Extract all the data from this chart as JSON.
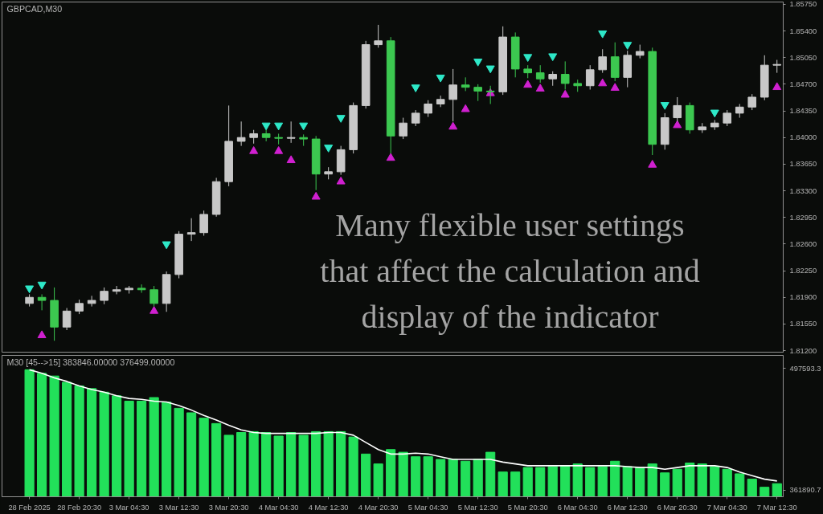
{
  "chart_data": [
    {
      "type": "candlestick",
      "title": "GBPCAD,M30",
      "annotations": [
        "Many flexible user settings",
        "that affect the calculation and",
        "display of the indicator"
      ],
      "categories": [
        null,
        null,
        null,
        null,
        null,
        null,
        null,
        null,
        null,
        null,
        null,
        null,
        null,
        null,
        null,
        null,
        null,
        null,
        null,
        null,
        null,
        null,
        null,
        null,
        null,
        null,
        null,
        null,
        null,
        null,
        null,
        null,
        null,
        null,
        null,
        null,
        null,
        null,
        null,
        null,
        null,
        null,
        null,
        null,
        null,
        null,
        null,
        null,
        null,
        null,
        null,
        null,
        null,
        null,
        null,
        null,
        null,
        null,
        null,
        null,
        null
      ],
      "ohlc": [
        [
          1.8182,
          1.8194,
          1.8178,
          1.819
        ],
        [
          1.819,
          1.8194,
          1.8173,
          1.8186
        ],
        [
          1.8186,
          1.8203,
          1.8133,
          1.8151
        ],
        [
          1.8151,
          1.8176,
          1.8147,
          1.8172
        ],
        [
          1.8172,
          1.8187,
          1.8168,
          1.8182
        ],
        [
          1.8182,
          1.8192,
          1.8178,
          1.8186
        ],
        [
          1.8186,
          1.8203,
          1.8181,
          1.8198
        ],
        [
          1.8198,
          1.8205,
          1.8194,
          1.82
        ],
        [
          1.82,
          1.8205,
          1.8195,
          1.8202
        ],
        [
          1.8202,
          1.8207,
          1.8196,
          1.82
        ],
        [
          1.82,
          1.8205,
          1.8178,
          1.8182
        ],
        [
          1.8182,
          1.8224,
          1.8171,
          1.822
        ],
        [
          1.822,
          1.8277,
          1.8215,
          1.8273
        ],
        [
          1.8273,
          1.8294,
          1.8264,
          1.8275
        ],
        [
          1.8275,
          1.8304,
          1.8271,
          1.8299
        ],
        [
          1.8299,
          1.8347,
          1.8296,
          1.8342
        ],
        [
          1.8342,
          1.8442,
          1.8336,
          1.8395
        ],
        [
          1.8395,
          1.8421,
          1.8389,
          1.84
        ],
        [
          1.84,
          1.841,
          1.8392,
          1.8405
        ],
        [
          1.8405,
          1.841,
          1.8395,
          1.84
        ],
        [
          1.84,
          1.8405,
          1.8391,
          1.8399
        ],
        [
          1.8399,
          1.8421,
          1.8393,
          1.84
        ],
        [
          1.84,
          1.8404,
          1.8389,
          1.8398
        ],
        [
          1.8398,
          1.8402,
          1.8331,
          1.8352
        ],
        [
          1.8352,
          1.8361,
          1.8345,
          1.8355
        ],
        [
          1.8355,
          1.8389,
          1.8351,
          1.8384
        ],
        [
          1.8384,
          1.8446,
          1.8379,
          1.8442
        ],
        [
          1.8442,
          1.8527,
          1.8438,
          1.8522
        ],
        [
          1.8522,
          1.8548,
          1.8518,
          1.8527
        ],
        [
          1.8527,
          1.8532,
          1.8379,
          1.8402
        ],
        [
          1.8402,
          1.8426,
          1.8398,
          1.8419
        ],
        [
          1.8419,
          1.8436,
          1.8415,
          1.8432
        ],
        [
          1.8432,
          1.8449,
          1.8427,
          1.8444
        ],
        [
          1.8444,
          1.8455,
          1.844,
          1.845
        ],
        [
          1.845,
          1.849,
          1.8421,
          1.8469
        ],
        [
          1.8469,
          1.8479,
          1.8461,
          1.8466
        ],
        [
          1.8466,
          1.847,
          1.8448,
          1.8461
        ],
        [
          1.8461,
          1.8468,
          1.8444,
          1.846
        ],
        [
          1.846,
          1.8546,
          1.8456,
          1.8532
        ],
        [
          1.8532,
          1.8538,
          1.8479,
          1.849
        ],
        [
          1.849,
          1.8495,
          1.8478,
          1.8485
        ],
        [
          1.8485,
          1.8495,
          1.8472,
          1.8477
        ],
        [
          1.8477,
          1.8487,
          1.8468,
          1.8483
        ],
        [
          1.8483,
          1.85,
          1.8463,
          1.8471
        ],
        [
          1.8471,
          1.8476,
          1.846,
          1.8468
        ],
        [
          1.8468,
          1.8495,
          1.8463,
          1.8489
        ],
        [
          1.8489,
          1.8516,
          1.8485,
          1.8506
        ],
        [
          1.8506,
          1.8525,
          1.8474,
          1.8479
        ],
        [
          1.8479,
          1.8514,
          1.8466,
          1.8508
        ],
        [
          1.8508,
          1.8522,
          1.8504,
          1.8513
        ],
        [
          1.8513,
          1.8518,
          1.8377,
          1.8391
        ],
        [
          1.8391,
          1.8432,
          1.8384,
          1.8426
        ],
        [
          1.8426,
          1.8453,
          1.8421,
          1.8442
        ],
        [
          1.8442,
          1.8446,
          1.8405,
          1.841
        ],
        [
          1.841,
          1.8419,
          1.8406,
          1.8414
        ],
        [
          1.8414,
          1.8423,
          1.841,
          1.8419
        ],
        [
          1.8419,
          1.8436,
          1.8415,
          1.8432
        ],
        [
          1.8432,
          1.8444,
          1.8426,
          1.844
        ],
        [
          1.844,
          1.8457,
          1.8436,
          1.8453
        ],
        [
          1.8453,
          1.8508,
          1.8449,
          1.8495
        ],
        [
          1.8495,
          1.8502,
          1.8485,
          1.8496
        ]
      ],
      "colors": [
        "#c8c8c8",
        "#3cc850",
        "#3cc850",
        "#c8c8c8",
        "#c8c8c8",
        "#c8c8c8",
        "#c8c8c8",
        "#c8c8c8",
        "#c8c8c8",
        "#3cc850",
        "#3cc850",
        "#c8c8c8",
        "#c8c8c8",
        "#c8c8c8",
        "#c8c8c8",
        "#c8c8c8",
        "#c8c8c8",
        "#c8c8c8",
        "#c8c8c8",
        "#3cc850",
        "#3cc850",
        "#c8c8c8",
        "#3cc850",
        "#3cc850",
        "#c8c8c8",
        "#c8c8c8",
        "#c8c8c8",
        "#c8c8c8",
        "#c8c8c8",
        "#3cc850",
        "#c8c8c8",
        "#c8c8c8",
        "#c8c8c8",
        "#c8c8c8",
        "#c8c8c8",
        "#3cc850",
        "#3cc850",
        "#3cc850",
        "#c8c8c8",
        "#3cc850",
        "#3cc850",
        "#3cc850",
        "#c8c8c8",
        "#3cc850",
        "#3cc850",
        "#c8c8c8",
        "#c8c8c8",
        "#3cc850",
        "#c8c8c8",
        "#c8c8c8",
        "#3cc850",
        "#c8c8c8",
        "#c8c8c8",
        "#3cc850",
        "#c8c8c8",
        "#c8c8c8",
        "#c8c8c8",
        "#c8c8c8",
        "#c8c8c8",
        "#c8c8c8",
        "#c8c8c8"
      ],
      "series": [
        {
          "type": "scatter",
          "color": "#2ee8c8",
          "marker": "triangle_down",
          "values": [
            1.8202,
            1.8207,
            null,
            null,
            null,
            null,
            null,
            null,
            null,
            null,
            null,
            1.826,
            null,
            null,
            null,
            null,
            null,
            null,
            null,
            1.8416,
            1.8416,
            null,
            1.8416,
            null,
            1.8387,
            1.8426,
            null,
            null,
            null,
            null,
            null,
            1.8466,
            null,
            1.8479,
            null,
            null,
            1.85,
            1.8491,
            null,
            null,
            1.8506,
            null,
            1.8507,
            null,
            null,
            null,
            1.8537,
            null,
            1.8522,
            null,
            null,
            1.8443,
            null,
            null,
            null,
            1.8433,
            null,
            null,
            null,
            null,
            null
          ]
        },
        {
          "type": "scatter",
          "color": "#d020d0",
          "marker": "triangle",
          "values": [
            null,
            1.814,
            null,
            null,
            null,
            null,
            null,
            null,
            null,
            null,
            1.8172,
            null,
            null,
            null,
            null,
            null,
            null,
            null,
            1.8382,
            null,
            1.8382,
            1.837,
            null,
            1.8322,
            null,
            1.8342,
            null,
            null,
            null,
            1.8373,
            null,
            null,
            null,
            null,
            1.8414,
            1.8437,
            null,
            1.8458,
            null,
            null,
            1.8469,
            1.8464,
            null,
            1.8456,
            null,
            null,
            1.8471,
            1.8465,
            null,
            null,
            1.8364,
            null,
            1.8416,
            null,
            null,
            null,
            null,
            null,
            null,
            null,
            1.8466
          ]
        }
      ],
      "ylim": [
        1.8118,
        1.8578
      ],
      "yticks": [
        {
          "value": 1.8575,
          "label": "1.85750"
        },
        {
          "value": 1.854,
          "label": "1.85400"
        },
        {
          "value": 1.8505,
          "label": "1.85050"
        },
        {
          "value": 1.847,
          "label": "1.84700"
        },
        {
          "value": 1.8435,
          "label": "1.84350"
        },
        {
          "value": 1.84,
          "label": "1.84000"
        },
        {
          "value": 1.8365,
          "label": "1.83650"
        },
        {
          "value": 1.833,
          "label": "1.83300"
        },
        {
          "value": 1.8295,
          "label": "1.82950"
        },
        {
          "value": 1.826,
          "label": "1.82600"
        },
        {
          "value": 1.8225,
          "label": "1.82250"
        },
        {
          "value": 1.819,
          "label": "1.81900"
        },
        {
          "value": 1.8155,
          "label": "1.81550"
        },
        {
          "value": 1.812,
          "label": "1.81200"
        }
      ],
      "tick_labels": "y"
    },
    {
      "type": "bar",
      "title": "M30 [45-->15] 383846.00000 376499.00000",
      "categories": [
        "28 Feb 2025",
        null,
        null,
        null,
        "28 Feb 20:30",
        null,
        null,
        null,
        "3 Mar 04:30",
        null,
        null,
        null,
        "3 Mar 12:30",
        null,
        null,
        null,
        "3 Mar 20:30",
        null,
        null,
        null,
        "4 Mar 04:30",
        null,
        null,
        null,
        "4 Mar 12:30",
        null,
        null,
        null,
        "4 Mar 20:30",
        null,
        null,
        null,
        "5 Mar 04:30",
        null,
        null,
        null,
        "5 Mar 12:30",
        null,
        null,
        null,
        "5 Mar 20:30",
        null,
        null,
        null,
        "6 Mar 04:30",
        null,
        null,
        null,
        "6 Mar 12:30",
        null,
        null,
        null,
        "6 Mar 20:30",
        null,
        null,
        null,
        "7 Mar 04:30",
        null,
        null,
        null,
        "7 Mar 12:30"
      ],
      "series": [
        {
          "type": "bar",
          "color": "#22e05a",
          "values": [
            496000,
            492000,
            489000,
            482000,
            478000,
            475000,
            471000,
            467000,
            461000,
            461000,
            465000,
            460000,
            453000,
            448000,
            442000,
            436000,
            423000,
            426000,
            427000,
            426000,
            422000,
            426000,
            423000,
            427000,
            427000,
            427000,
            421000,
            402000,
            391000,
            407000,
            404000,
            399000,
            399000,
            396000,
            396000,
            394000,
            396000,
            404000,
            382000,
            382000,
            387000,
            387000,
            388000,
            389000,
            391000,
            387000,
            388000,
            394000,
            388000,
            387000,
            391000,
            381000,
            385000,
            392000,
            391000,
            388000,
            385000,
            380000,
            374000,
            365000,
            369000
          ]
        },
        {
          "type": "line",
          "color": "#ffffff",
          "values": [
            496000,
            492000,
            487000,
            483000,
            478000,
            474000,
            471000,
            467000,
            464000,
            463000,
            461000,
            460000,
            456000,
            451000,
            445000,
            440000,
            434000,
            429000,
            426000,
            425000,
            425000,
            425000,
            425000,
            425000,
            426000,
            426000,
            423000,
            415000,
            407000,
            402000,
            402000,
            403000,
            402000,
            399000,
            396000,
            396000,
            396000,
            396000,
            393000,
            391000,
            389000,
            389000,
            389000,
            389000,
            389000,
            389000,
            389000,
            389000,
            388000,
            387000,
            387000,
            385000,
            387000,
            389000,
            389000,
            389000,
            387000,
            382000,
            378000,
            374000,
            372000
          ]
        }
      ],
      "ylim": [
        354400,
        512000
      ],
      "yticks": [
        497593.3,
        361890.7
      ]
    }
  ]
}
